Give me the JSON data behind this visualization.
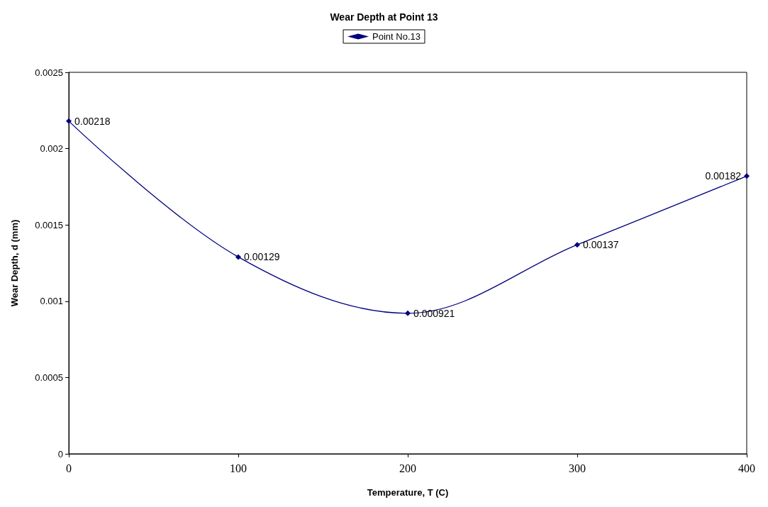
{
  "chart_data": {
    "type": "line",
    "title": "Wear Depth at Point 13",
    "xlabel": "Temperature, T (C)",
    "ylabel": "Wear Depth, d (mm)",
    "x": [
      0,
      100,
      200,
      300,
      400
    ],
    "series": [
      {
        "name": "Point No.13",
        "color": "#000080",
        "values": [
          0.00218,
          0.00129,
          0.000921,
          0.00137,
          0.00182
        ]
      }
    ],
    "xlim": [
      0,
      400
    ],
    "xticks": [
      0,
      100,
      200,
      300,
      400
    ],
    "ylim": [
      0,
      0.0025
    ],
    "yticks": [
      0,
      0.0005,
      0.001,
      0.0015,
      0.002,
      0.0025
    ],
    "grid": false,
    "legend": "top",
    "marker": "diamond",
    "line_style": "solid",
    "data_labels": true
  }
}
